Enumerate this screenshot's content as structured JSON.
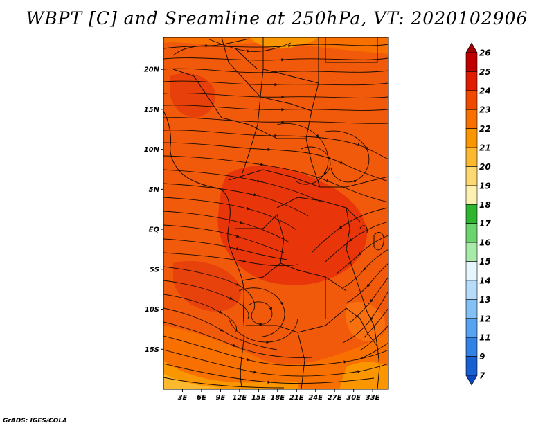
{
  "title": "WBPT [C] and Sreamline at 250hPa, VT: 2020102906",
  "credit": "GrADS: IGES/COLA",
  "map": {
    "lon_range": [
      0,
      35.5
    ],
    "lat_range": [
      -20,
      24
    ],
    "lat_ticks": [
      {
        "value": 20,
        "label": "20N"
      },
      {
        "value": 15,
        "label": "15N"
      },
      {
        "value": 10,
        "label": "10N"
      },
      {
        "value": 5,
        "label": "5N"
      },
      {
        "value": 0,
        "label": "EQ"
      },
      {
        "value": -5,
        "label": "5S"
      },
      {
        "value": -10,
        "label": "10S"
      },
      {
        "value": -15,
        "label": "15S"
      }
    ],
    "lon_ticks": [
      {
        "value": 3,
        "label": "3E"
      },
      {
        "value": 6,
        "label": "6E"
      },
      {
        "value": 9,
        "label": "9E"
      },
      {
        "value": 12,
        "label": "12E"
      },
      {
        "value": 15,
        "label": "15E"
      },
      {
        "value": 18,
        "label": "18E"
      },
      {
        "value": 21,
        "label": "21E"
      },
      {
        "value": 24,
        "label": "24E"
      },
      {
        "value": 27,
        "label": "27E"
      },
      {
        "value": 30,
        "label": "30E"
      },
      {
        "value": 33,
        "label": "33E"
      }
    ]
  },
  "colorbar": {
    "labels": [
      "26",
      "25",
      "24",
      "23",
      "22",
      "21",
      "20",
      "19",
      "18",
      "17",
      "16",
      "15",
      "14",
      "13",
      "12",
      "11",
      "9",
      "7"
    ],
    "colors": [
      "#a00000",
      "#c00000",
      "#e01b00",
      "#f04a00",
      "#f87000",
      "#fa9600",
      "#fcb930",
      "#fcd870",
      "#fef0b0",
      "#2fb52f",
      "#6cd46c",
      "#a8eaa8",
      "#e6f6fc",
      "#b6dcfa",
      "#82c0f6",
      "#56a4f0",
      "#3282e6",
      "#1660d2",
      "#0a46be"
    ]
  }
}
